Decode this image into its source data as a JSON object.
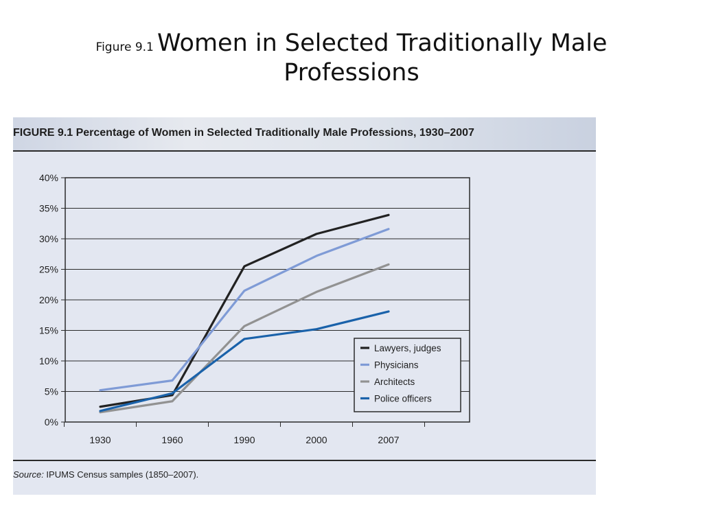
{
  "slide": {
    "title_prefix": "Figure 9.1",
    "title_line1": "Women in Selected Traditionally Male",
    "title_line2": "Professions"
  },
  "figure": {
    "caption": "FIGURE 9.1 Percentage of Women in Selected Traditionally Male Professions, 1930–2007",
    "source_label": "Source:",
    "source_text": " IPUMS Census samples (1850–2007)."
  },
  "colors": {
    "panel_bg": "#e3e7f1",
    "lawyers": "#222222",
    "physicians": "#7f9bd6",
    "architects": "#929292",
    "police": "#1a62aa"
  },
  "chart_data": {
    "type": "line",
    "title": "Percentage of Women in Selected Traditionally Male Professions, 1930–2007",
    "categories": [
      "1930",
      "1960",
      "1990",
      "2000",
      "2007"
    ],
    "series": [
      {
        "name": "Lawyers, judges",
        "values": [
          2.5,
          4.4,
          25.5,
          30.8,
          33.9
        ],
        "color": "#222222"
      },
      {
        "name": "Physicians",
        "values": [
          5.2,
          6.8,
          21.5,
          27.2,
          31.6
        ],
        "color": "#7f9bd6"
      },
      {
        "name": "Architects",
        "values": [
          1.6,
          3.4,
          15.7,
          21.3,
          25.8
        ],
        "color": "#929292"
      },
      {
        "name": "Police officers",
        "values": [
          1.8,
          4.7,
          13.6,
          15.2,
          18.1
        ],
        "color": "#1a62aa"
      }
    ],
    "yticks": [
      "0%",
      "5%",
      "10%",
      "15%",
      "20%",
      "25%",
      "30%",
      "35%",
      "40%"
    ],
    "ylim": [
      0,
      40
    ],
    "grid": true,
    "legend_position": "bottom-right"
  }
}
